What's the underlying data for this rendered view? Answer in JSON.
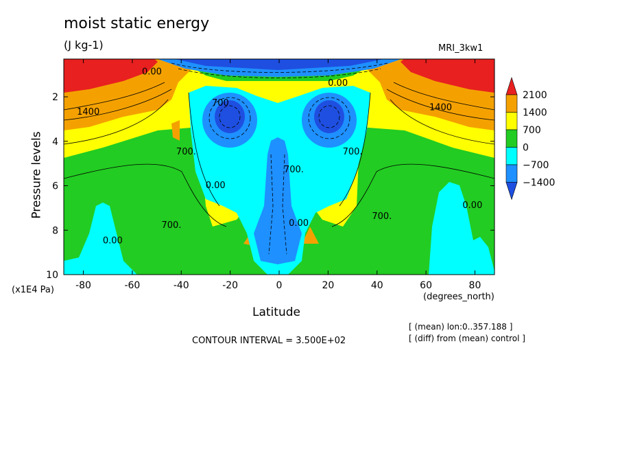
{
  "chart_data": {
    "type": "heatmap",
    "title": "moist static energy",
    "units": "(J kg-1)",
    "model": "MRI_3kw1",
    "xlabel": "Latitude",
    "x_unit": "(degrees_north)",
    "ylabel": "Pressure levels",
    "y_unit": "(x1E4 Pa)",
    "xlim": [
      -88,
      88
    ],
    "ylim": [
      10,
      0.3
    ],
    "x_ticks": [
      -80,
      -60,
      -40,
      -20,
      0,
      20,
      40,
      60,
      80
    ],
    "x_tick_labels": [
      "-80",
      "-60",
      "-40",
      "-20",
      "0",
      "20",
      "40",
      "60",
      "80"
    ],
    "y_ticks": [
      2,
      4,
      6,
      8,
      10
    ],
    "y_tick_labels": [
      "2",
      "4",
      "6",
      "8",
      "10"
    ],
    "contour_interval_text": "CONTOUR INTERVAL = 3.500E+02",
    "notes": [
      "[ (mean) lon:0..357.188 ]",
      "[ (diff) from (mean) control ]"
    ],
    "colorbar": {
      "levels": [
        2100,
        1400,
        700,
        0,
        -700,
        -1400
      ],
      "labels": [
        "2100",
        "1400",
        "700",
        "0",
        "−700",
        "−1400"
      ],
      "colors": [
        "#e8201f",
        "#f4a100",
        "#ffff00",
        "#22cc22",
        "#00ffff",
        "#1e90ff",
        "#1e4fe0"
      ]
    },
    "contour_labels": [
      "1400",
      "1400",
      "700.",
      "700.",
      "700.",
      "700.",
      "700.",
      "700",
      "0.00",
      "0.00",
      "0.00",
      "0.00",
      "0.00",
      "0.00"
    ]
  }
}
